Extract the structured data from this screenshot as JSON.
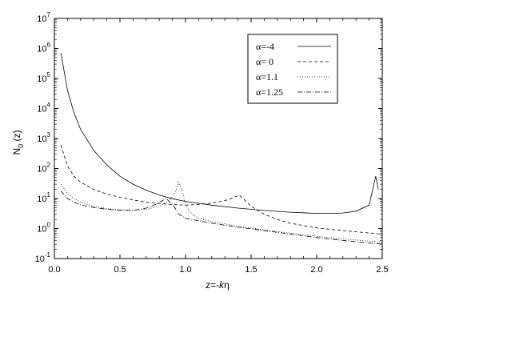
{
  "chart_data": {
    "type": "line",
    "title": "",
    "xlabel": {
      "pre": "z=-",
      "k": "k",
      "eta": "η"
    },
    "ylabel": {
      "base": "N",
      "sub": "0",
      "rest": " (z)"
    },
    "xlim": [
      0,
      2.5
    ],
    "ylim": [
      0.1,
      10000000
    ],
    "y_scale": "log",
    "grid": false,
    "legend_position": "top-right",
    "x_ticks": [
      "0.0",
      "0.5",
      "1.0",
      "1.5",
      "2.0",
      "2.5"
    ],
    "x_tick_values": [
      0,
      0.5,
      1.0,
      1.5,
      2.0,
      2.5
    ],
    "y_ticks": [
      {
        "base": "10",
        "exp": "-1",
        "value": 0.1
      },
      {
        "base": "10",
        "exp": "0",
        "value": 1
      },
      {
        "base": "10",
        "exp": "1",
        "value": 10
      },
      {
        "base": "10",
        "exp": "2",
        "value": 100
      },
      {
        "base": "10",
        "exp": "3",
        "value": 1000
      },
      {
        "base": "10",
        "exp": "4",
        "value": 10000
      },
      {
        "base": "10",
        "exp": "5",
        "value": 100000
      },
      {
        "base": "10",
        "exp": "6",
        "value": 1000000
      },
      {
        "base": "10",
        "exp": "7",
        "value": 10000000
      }
    ],
    "series": [
      {
        "name": "α=-4",
        "dash": "solid",
        "x": [
          0.05,
          0.1,
          0.15,
          0.2,
          0.3,
          0.4,
          0.5,
          0.6,
          0.7,
          0.8,
          0.9,
          1.0,
          1.2,
          1.4,
          1.6,
          1.8,
          2.0,
          2.1,
          2.2,
          2.3,
          2.4,
          2.45,
          2.47
        ],
        "y": [
          700000,
          40000,
          7000,
          2000,
          400,
          130,
          55,
          30,
          19,
          13,
          9.8,
          8,
          6,
          4.8,
          4,
          3.5,
          3.2,
          3.2,
          3.3,
          3.8,
          6,
          55,
          20
        ]
      },
      {
        "name": "α= 0",
        "dash": "dash",
        "x": [
          0.05,
          0.1,
          0.15,
          0.2,
          0.3,
          0.4,
          0.5,
          0.6,
          0.7,
          0.8,
          0.9,
          1.0,
          1.1,
          1.2,
          1.3,
          1.35,
          1.41,
          1.45,
          1.5,
          1.6,
          1.7,
          1.8,
          2.0,
          2.2,
          2.5
        ],
        "y": [
          600,
          120,
          55,
          35,
          20,
          14,
          11,
          9,
          7.5,
          6.8,
          6.3,
          6,
          6.4,
          7,
          8.5,
          10,
          13,
          9,
          5.5,
          3,
          2,
          1.5,
          1.05,
          0.85,
          0.65
        ]
      },
      {
        "name": "α=1.1",
        "dash": "dot",
        "x": [
          0.05,
          0.1,
          0.15,
          0.2,
          0.3,
          0.4,
          0.5,
          0.6,
          0.7,
          0.8,
          0.87,
          0.92,
          0.95,
          0.98,
          1.0,
          1.05,
          1.1,
          1.2,
          1.4,
          1.6,
          1.8,
          2.0,
          2.2,
          2.5
        ],
        "y": [
          30,
          15,
          10,
          7.5,
          5.5,
          4.6,
          4.2,
          4.1,
          4.3,
          5.5,
          8,
          15,
          35,
          15,
          6,
          3,
          2.2,
          1.7,
          1.2,
          0.9,
          0.7,
          0.55,
          0.45,
          0.35
        ]
      },
      {
        "name": "α=1.25",
        "dash": "dashdot",
        "x": [
          0.05,
          0.1,
          0.15,
          0.2,
          0.3,
          0.4,
          0.5,
          0.6,
          0.7,
          0.78,
          0.85,
          0.9,
          0.95,
          1.0,
          1.2,
          1.4,
          1.6,
          1.8,
          2.0,
          2.2,
          2.5
        ],
        "y": [
          18,
          10,
          7.5,
          6.2,
          5,
          4.4,
          4,
          4,
          4.8,
          6.5,
          10,
          6.5,
          3,
          2.2,
          1.5,
          1.1,
          0.85,
          0.65,
          0.5,
          0.4,
          0.3
        ]
      }
    ]
  }
}
